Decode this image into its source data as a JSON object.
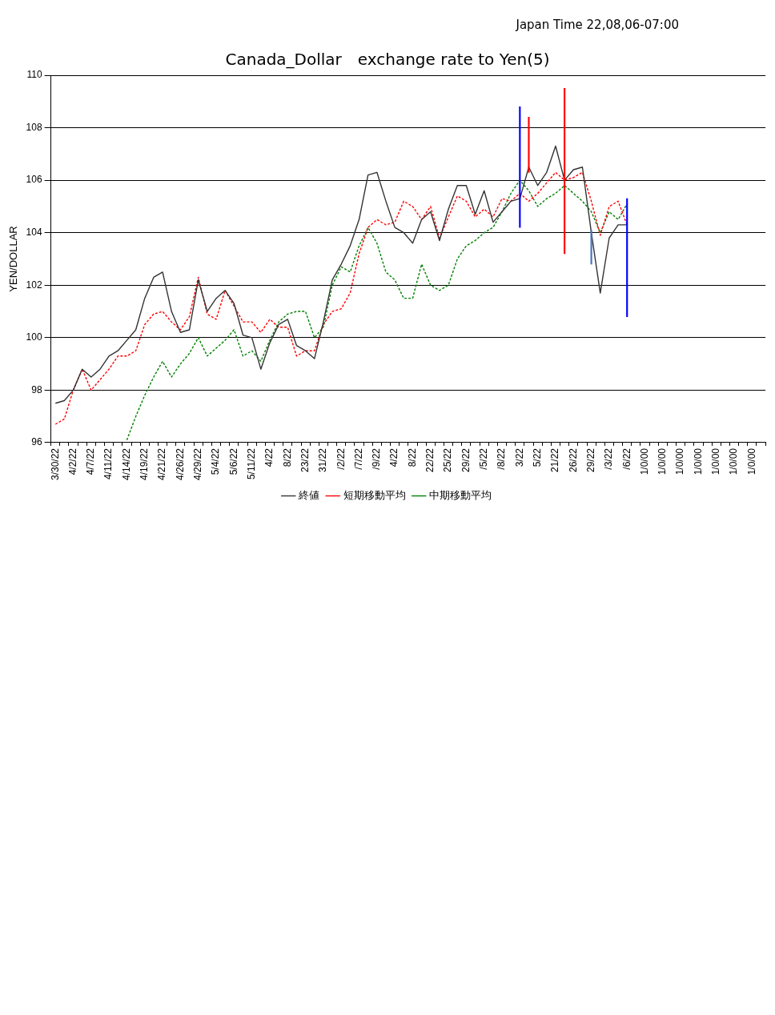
{
  "chart_data": {
    "type": "line",
    "title": "Canada_Dollar　exchange rate to Yen(5)",
    "ylabel": "YEN/DOLLAR",
    "annotations": [
      "Japan Time  22,08,06-07:00"
    ],
    "categories": [
      "3/30/22",
      null,
      "4/2/22",
      null,
      "4/7/22",
      null,
      "4/11/22",
      null,
      "4/14/22",
      null,
      "4/19/22",
      null,
      "4/21/22",
      null,
      "4/26/22",
      null,
      "4/29/22",
      null,
      "5/4/22",
      null,
      "5/6/22",
      null,
      "5/11/22",
      null,
      "4/22",
      null,
      "8/22",
      null,
      "23/22",
      null,
      "31/22",
      null,
      "/2/22",
      null,
      "/7/22",
      null,
      "/9/22",
      null,
      "4/22",
      null,
      "8/22",
      null,
      "22/22",
      null,
      "25/22",
      null,
      "29/22",
      null,
      "/5/22",
      null,
      "/8/22",
      null,
      "3/22",
      null,
      "5/22",
      null,
      "21/22",
      null,
      "26/22",
      null,
      "29/22",
      null,
      "/3/22",
      null,
      "/6/22",
      null,
      "1/0/00",
      null,
      "1/0/00",
      null,
      "1/0/00",
      null,
      "1/0/00",
      null,
      "1/0/00",
      null,
      "1/0/00",
      null,
      "1/0/00",
      null
    ],
    "series": [
      {
        "name": "終値",
        "color": "#333333",
        "line_style": "solid",
        "values": [
          97.5,
          97.6,
          98.0,
          98.8,
          98.5,
          98.8,
          99.3,
          99.5,
          99.9,
          100.3,
          101.5,
          102.3,
          102.5,
          101.0,
          100.2,
          100.3,
          102.2,
          101.0,
          101.5,
          101.8,
          101.3,
          100.1,
          100.0,
          98.8,
          99.8,
          100.5,
          100.7,
          99.7,
          99.5,
          99.2,
          100.6,
          102.2,
          102.8,
          103.5,
          104.5,
          106.2,
          106.3,
          105.2,
          104.2,
          104.0,
          103.6,
          104.5,
          104.8,
          103.7,
          104.9,
          105.8,
          105.8,
          104.7,
          105.6,
          104.4,
          104.8,
          105.2,
          105.3,
          106.5,
          105.8,
          106.3,
          107.3,
          106.0,
          106.4,
          106.5,
          104.0,
          101.7,
          103.8,
          104.3,
          104.3,
          null,
          null,
          null,
          null,
          null,
          null,
          null,
          null,
          null,
          null,
          null,
          null,
          null,
          null,
          null
        ]
      },
      {
        "name": "短期移動平均",
        "color": "#ff0000",
        "line_style": "dashed",
        "values": [
          96.7,
          96.9,
          98.0,
          98.8,
          98.0,
          98.4,
          98.8,
          99.3,
          99.3,
          99.5,
          100.5,
          100.9,
          101.0,
          100.6,
          100.3,
          100.8,
          102.3,
          100.9,
          100.7,
          101.8,
          101.2,
          100.6,
          100.6,
          100.2,
          100.7,
          100.4,
          100.4,
          99.3,
          99.5,
          99.5,
          100.5,
          101.0,
          101.1,
          101.7,
          103.2,
          104.2,
          104.5,
          104.3,
          104.4,
          105.2,
          105.0,
          104.5,
          105.0,
          103.8,
          104.6,
          105.4,
          105.2,
          104.6,
          104.9,
          104.6,
          105.3,
          105.2,
          105.5,
          105.2,
          105.5,
          105.9,
          106.3,
          106.0,
          106.1,
          106.3,
          105.2,
          103.9,
          105.0,
          105.2,
          104.3,
          null,
          null,
          null,
          null,
          null,
          null,
          null,
          null,
          null,
          null,
          null,
          null,
          null,
          null,
          null
        ]
      },
      {
        "name": "中期移動平均",
        "color": "#008000",
        "line_style": "dashed",
        "values": [
          null,
          null,
          null,
          null,
          null,
          null,
          null,
          null,
          96.1,
          97.0,
          97.8,
          98.5,
          99.1,
          98.5,
          99.0,
          99.4,
          100.0,
          99.3,
          99.6,
          99.9,
          100.3,
          99.3,
          99.5,
          99.1,
          99.9,
          100.6,
          100.9,
          101.0,
          101.0,
          100.0,
          100.4,
          102.0,
          102.7,
          102.5,
          103.5,
          104.2,
          103.6,
          102.5,
          102.2,
          101.5,
          101.5,
          102.8,
          102.0,
          101.8,
          102.0,
          103.0,
          103.5,
          103.7,
          104.0,
          104.2,
          104.8,
          105.5,
          106.0,
          105.6,
          105.0,
          105.3,
          105.5,
          105.8,
          105.5,
          105.2,
          104.8,
          104.0,
          104.8,
          104.5,
          105.1,
          null,
          null,
          null,
          null,
          null,
          null,
          null,
          null,
          null,
          null,
          null,
          null,
          null,
          null,
          null
        ]
      },
      {
        "type": "bar",
        "values": [
          null,
          null,
          null,
          null,
          null,
          null,
          null,
          null,
          null,
          null,
          null,
          null,
          null,
          null,
          null,
          null,
          null,
          null,
          null,
          null,
          null,
          null,
          null,
          null,
          null,
          null,
          null,
          null,
          null,
          null,
          null,
          null,
          null,
          null,
          null,
          null,
          null,
          null,
          null,
          null,
          null,
          null,
          null,
          null,
          null,
          null,
          null,
          null,
          null,
          null,
          null,
          null,
          4.6,
          2.1,
          null,
          null,
          null,
          6.3,
          null,
          null,
          1.3,
          null,
          null,
          null,
          4.5,
          null,
          null,
          null,
          null,
          null,
          null,
          null,
          null,
          null,
          null,
          null,
          null,
          null,
          null,
          null
        ],
        "base": [
          null,
          null,
          null,
          null,
          null,
          null,
          null,
          null,
          null,
          null,
          null,
          null,
          null,
          null,
          null,
          null,
          null,
          null,
          null,
          null,
          null,
          null,
          null,
          null,
          null,
          null,
          null,
          null,
          null,
          null,
          null,
          null,
          null,
          null,
          null,
          null,
          null,
          null,
          null,
          null,
          null,
          null,
          null,
          null,
          null,
          null,
          null,
          null,
          null,
          null,
          null,
          null,
          104.2,
          106.3,
          null,
          null,
          null,
          103.2,
          null,
          null,
          102.8,
          null,
          null,
          null,
          100.8,
          null,
          null,
          null,
          null,
          null,
          null,
          null,
          null,
          null,
          null,
          null,
          null,
          null,
          null,
          null
        ],
        "colors": [
          null,
          null,
          null,
          null,
          null,
          null,
          null,
          null,
          null,
          null,
          null,
          null,
          null,
          null,
          null,
          null,
          null,
          null,
          null,
          null,
          null,
          null,
          null,
          null,
          null,
          null,
          null,
          null,
          null,
          null,
          null,
          null,
          null,
          null,
          null,
          null,
          null,
          null,
          null,
          null,
          null,
          null,
          null,
          null,
          null,
          null,
          null,
          null,
          null,
          null,
          null,
          null,
          "#0000ff",
          "#ff0000",
          null,
          null,
          null,
          "#ff0000",
          null,
          null,
          "#4472c4",
          null,
          null,
          null,
          "#0000ff",
          null,
          null,
          null,
          null,
          null,
          null,
          null,
          null,
          null,
          null,
          null,
          null,
          null,
          null,
          null
        ]
      }
    ],
    "ylim": [
      96,
      110
    ],
    "yticks": [
      96,
      98,
      100,
      102,
      104,
      106,
      108,
      110
    ],
    "grid": "y",
    "legend": "bottom",
    "marker": "none"
  }
}
